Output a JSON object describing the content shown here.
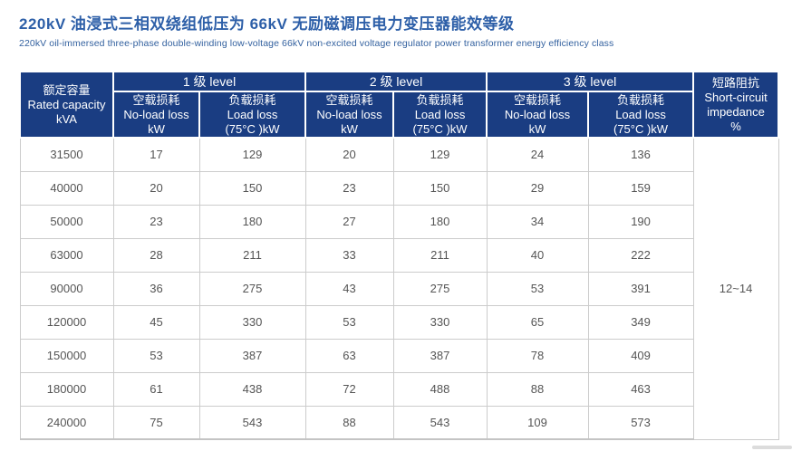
{
  "page": {
    "title_zh": "220kV 油浸式三相双绕组低压为 66kV 无励磁调压电力变压器能效等级",
    "title_en": "220kV oil-immersed three-phase double-winding low-voltage 66kV non-excited voltage regulator power transformer energy efficiency class"
  },
  "colors": {
    "header_bg": "#1a3d82",
    "title_text": "#2d5fa8",
    "body_text": "#555555",
    "grid_line": "#cccccc"
  },
  "table": {
    "capacity_header": {
      "zh": "额定容量",
      "en": "Rated capacity",
      "unit": "kVA"
    },
    "groups": [
      {
        "label": "1 级 level"
      },
      {
        "label": "2 级 level"
      },
      {
        "label": "3 级 level"
      }
    ],
    "loss_headers": {
      "no_load": {
        "zh": "空载损耗",
        "en": "No-load loss",
        "unit": "kW"
      },
      "load": {
        "zh": "负载损耗",
        "en": "Load loss",
        "unit": "(75°C )kW"
      }
    },
    "impedance_header": {
      "zh": "短路阻抗",
      "en": "Short-circuit impedance",
      "unit": "%"
    },
    "impedance_value": "12~14",
    "rows": [
      {
        "capacity": "31500",
        "values": [
          "17",
          "129",
          "20",
          "129",
          "24",
          "136"
        ]
      },
      {
        "capacity": "40000",
        "values": [
          "20",
          "150",
          "23",
          "150",
          "29",
          "159"
        ]
      },
      {
        "capacity": "50000",
        "values": [
          "23",
          "180",
          "27",
          "180",
          "34",
          "190"
        ]
      },
      {
        "capacity": "63000",
        "values": [
          "28",
          "211",
          "33",
          "211",
          "40",
          "222"
        ]
      },
      {
        "capacity": "90000",
        "values": [
          "36",
          "275",
          "43",
          "275",
          "53",
          "391"
        ]
      },
      {
        "capacity": "120000",
        "values": [
          "45",
          "330",
          "53",
          "330",
          "65",
          "349"
        ]
      },
      {
        "capacity": "150000",
        "values": [
          "53",
          "387",
          "63",
          "387",
          "78",
          "409"
        ]
      },
      {
        "capacity": "180000",
        "values": [
          "61",
          "438",
          "72",
          "488",
          "88",
          "463"
        ]
      },
      {
        "capacity": "240000",
        "values": [
          "75",
          "543",
          "88",
          "543",
          "109",
          "573"
        ]
      }
    ]
  },
  "chart_data": {
    "type": "table",
    "title": "220kV 油浸式三相双绕组低压为 66kV 无励磁调压电力变压器能效等级",
    "subtitle": "220kV oil-immersed three-phase double-winding low-voltage 66kV non-excited voltage regulator power transformer energy efficiency class",
    "columns": [
      "额定容量 Rated capacity kVA",
      "1级 level 空载损耗 No-load loss kW",
      "1级 level 负载损耗 Load loss (75°C) kW",
      "2级 level 空载损耗 No-load loss kW",
      "2级 level 负载损耗 Load loss (75°C) kW",
      "3级 level 空载损耗 No-load loss kW",
      "3级 level 负载损耗 Load loss (75°C) kW",
      "短路阻抗 Short-circuit impedance %"
    ],
    "rows": [
      [
        31500,
        17,
        129,
        20,
        129,
        24,
        136,
        "12~14"
      ],
      [
        40000,
        20,
        150,
        23,
        150,
        29,
        159,
        "12~14"
      ],
      [
        50000,
        23,
        180,
        27,
        180,
        34,
        190,
        "12~14"
      ],
      [
        63000,
        28,
        211,
        33,
        211,
        40,
        222,
        "12~14"
      ],
      [
        90000,
        36,
        275,
        43,
        275,
        53,
        391,
        "12~14"
      ],
      [
        120000,
        45,
        330,
        53,
        330,
        65,
        349,
        "12~14"
      ],
      [
        150000,
        53,
        387,
        63,
        387,
        78,
        409,
        "12~14"
      ],
      [
        180000,
        61,
        438,
        72,
        488,
        88,
        463,
        "12~14"
      ],
      [
        240000,
        75,
        543,
        88,
        543,
        109,
        573,
        "12~14"
      ]
    ]
  }
}
